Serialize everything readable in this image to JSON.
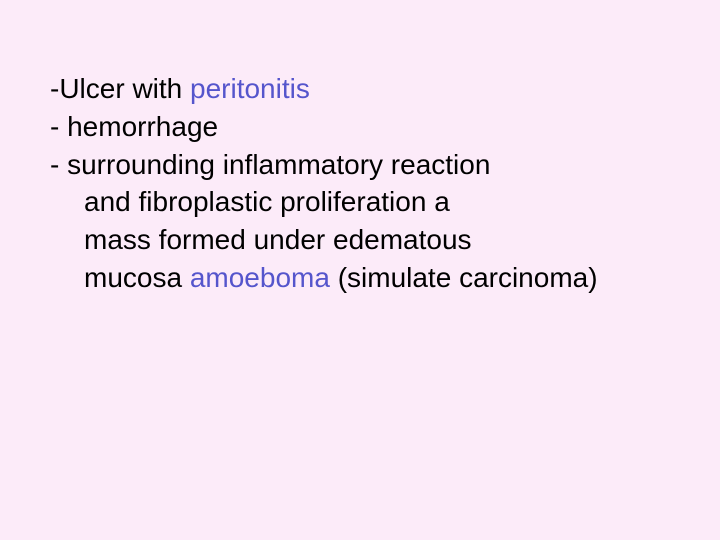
{
  "slide": {
    "background_color": "#fcebf9",
    "text_color": "#000000",
    "keyword_color": "#5555cc",
    "font_family": "Comic Sans MS",
    "font_size_pt": 28,
    "lines": {
      "l1a": "-Ulcer with ",
      "l1b": "peritonitis",
      "l2": "- hemorrhage",
      "l3": "- surrounding inflammatory reaction",
      "l4": "and fibroplastic proliferation a",
      "l5": "mass formed under edematous",
      "l6a": "mucosa ",
      "l6b": "amoeboma",
      "l6c": " (simulate carcinoma)"
    }
  }
}
